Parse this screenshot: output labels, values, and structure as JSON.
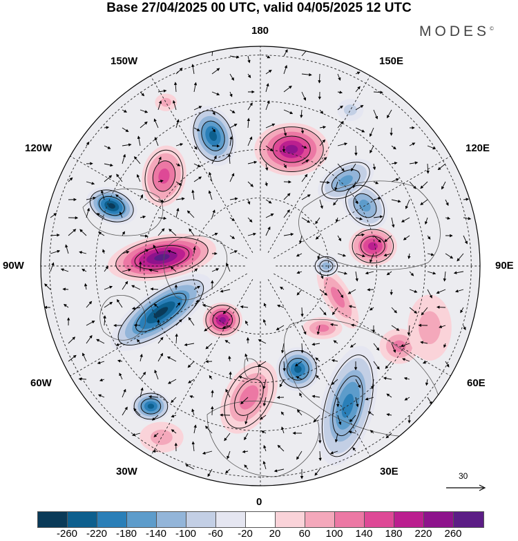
{
  "header": {
    "title": "Base 27/04/2025 00 UTC, valid 04/05/2025 12 UTC"
  },
  "brand": {
    "name": "MODES",
    "mark": "©"
  },
  "longitudes": [
    "180",
    "150E",
    "120E",
    "90E",
    "60E",
    "30E",
    "0",
    "30W",
    "60W",
    "90W",
    "120W",
    "150W"
  ],
  "reference_vector": {
    "label": "30"
  },
  "colorbar": {
    "labels": [
      "-260",
      "-220",
      "-180",
      "-140",
      "-100",
      "-60",
      "-20",
      "20",
      "60",
      "100",
      "140",
      "180",
      "220",
      "260"
    ],
    "colors": [
      "#0a3a58",
      "#0d5f8e",
      "#2a7fb8",
      "#5d9ccb",
      "#93b5d9",
      "#c3cfe5",
      "#e5e6f1",
      "#ffffff",
      "#fad3d9",
      "#f4a8bb",
      "#ec78a4",
      "#de4996",
      "#bb1f8f",
      "#8e138c",
      "#5c1d86"
    ]
  },
  "anomalies": [
    {
      "id": "a1",
      "lon": 165,
      "dist": 0.55,
      "value": 230,
      "rx": 0.17,
      "ry": 0.12,
      "rot": 0
    },
    {
      "id": "a2",
      "lon": -160,
      "dist": 0.63,
      "value": -220,
      "rx": 0.14,
      "ry": 0.1,
      "rot": 70
    },
    {
      "id": "a3",
      "lon": -133,
      "dist": 0.6,
      "value": 120,
      "rx": 0.1,
      "ry": 0.14,
      "rot": 10
    },
    {
      "id": "a4",
      "lon": -112,
      "dist": 0.73,
      "value": -240,
      "rx": 0.12,
      "ry": 0.08,
      "rot": 20
    },
    {
      "id": "a5",
      "lon": -95,
      "dist": 0.45,
      "value": 250,
      "rx": 0.25,
      "ry": 0.1,
      "rot": -10
    },
    {
      "id": "a6",
      "lon": -65,
      "dist": 0.5,
      "value": -270,
      "rx": 0.27,
      "ry": 0.1,
      "rot": -35
    },
    {
      "id": "a7",
      "lon": -35,
      "dist": 0.3,
      "value": 200,
      "rx": 0.09,
      "ry": 0.08,
      "rot": 0
    },
    {
      "id": "a8",
      "lon": -38,
      "dist": 0.81,
      "value": -200,
      "rx": 0.09,
      "ry": 0.07,
      "rot": 0
    },
    {
      "id": "a9",
      "lon": -5,
      "dist": 0.6,
      "value": 110,
      "rx": 0.18,
      "ry": 0.11,
      "rot": -60
    },
    {
      "id": "a10",
      "lon": 20,
      "dist": 0.5,
      "value": -220,
      "rx": 0.1,
      "ry": 0.1,
      "rot": 0
    },
    {
      "id": "a11",
      "lon": 32,
      "dist": 0.75,
      "value": -160,
      "rx": 0.12,
      "ry": 0.28,
      "rot": 15
    },
    {
      "id": "a12",
      "lon": 60,
      "dist": 0.73,
      "value": 90,
      "rx": 0.09,
      "ry": 0.08,
      "rot": 0
    },
    {
      "id": "a13",
      "lon": 68,
      "dist": 0.38,
      "value": 80,
      "rx": 0.16,
      "ry": 0.06,
      "rot": 60
    },
    {
      "id": "a14",
      "lon": 100,
      "dist": 0.52,
      "value": 190,
      "rx": 0.11,
      "ry": 0.09,
      "rot": 0
    },
    {
      "id": "a15",
      "lon": 120,
      "dist": 0.55,
      "value": -130,
      "rx": 0.09,
      "ry": 0.12,
      "rot": -40
    },
    {
      "id": "a16",
      "lon": 135,
      "dist": 0.55,
      "value": -150,
      "rx": 0.14,
      "ry": 0.08,
      "rot": -30
    },
    {
      "id": "a17",
      "lon": 90,
      "dist": 0.3,
      "value": -100,
      "rx": 0.06,
      "ry": 0.05,
      "rot": 0
    },
    {
      "id": "a18",
      "lon": 150,
      "dist": 0.82,
      "value": -40,
      "rx": 0.06,
      "ry": 0.05,
      "rot": 0
    },
    {
      "id": "a19",
      "lon": -30,
      "dist": 0.9,
      "value": 40,
      "rx": 0.1,
      "ry": 0.07,
      "rot": 0
    },
    {
      "id": "a20",
      "lon": 70,
      "dist": 0.82,
      "value": 60,
      "rx": 0.1,
      "ry": 0.15,
      "rot": 0
    },
    {
      "id": "a21",
      "lon": -150,
      "dist": 0.86,
      "value": 60,
      "rx": 0.05,
      "ry": 0.04,
      "rot": 0
    },
    {
      "id": "a22",
      "lon": 45,
      "dist": 0.4,
      "value": 90,
      "rx": 0.09,
      "ry": 0.05,
      "rot": 0
    }
  ]
}
